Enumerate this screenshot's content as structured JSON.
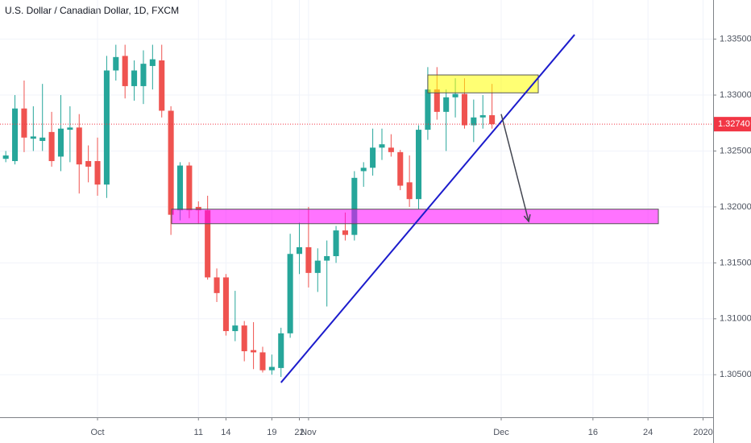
{
  "chart_data": {
    "type": "candlestick",
    "title": "U.S. Dollar / Canadian Dollar, 1D, FXCM",
    "x": [
      -10,
      -9,
      -8,
      -7,
      -6,
      -5,
      -4,
      -3,
      -2,
      -1,
      0,
      1,
      2,
      3,
      4,
      5,
      6,
      7,
      8,
      9,
      10,
      11,
      12,
      13,
      14,
      15,
      16,
      17,
      18,
      19,
      20,
      21,
      22,
      23,
      24,
      25,
      26,
      27,
      28,
      29,
      30,
      31,
      32,
      33,
      34,
      35,
      36,
      37,
      38,
      39,
      40,
      41,
      42,
      43
    ],
    "open": [
      1.3243,
      1.3241,
      1.3288,
      1.3261,
      1.3259,
      1.3267,
      1.3245,
      1.3269,
      1.3271,
      1.3241,
      1.3241,
      1.322,
      1.3322,
      1.3335,
      1.3308,
      1.3308,
      1.3326,
      1.3331,
      1.3286,
      1.3197,
      1.3237,
      1.32,
      1.3197,
      1.3137,
      1.3137,
      1.3089,
      1.3094,
      1.3072,
      1.307,
      1.3054,
      1.3056,
      1.3087,
      1.3158,
      1.3164,
      1.3141,
      1.3152,
      1.3156,
      1.3179,
      1.3175,
      1.3232,
      1.3235,
      1.3253,
      1.3253,
      1.3249,
      1.3222,
      1.3207,
      1.3269,
      1.3305,
      1.3285,
      1.3298,
      1.3301,
      1.3273,
      1.328,
      1.3282
    ],
    "high": [
      1.325,
      1.33,
      1.3313,
      1.329,
      1.331,
      1.3285,
      1.33,
      1.329,
      1.3283,
      1.3255,
      1.3262,
      1.3335,
      1.3345,
      1.3345,
      1.3331,
      1.334,
      1.3345,
      1.3345,
      1.329,
      1.324,
      1.324,
      1.3205,
      1.321,
      1.3145,
      1.314,
      1.3125,
      1.3098,
      1.3097,
      1.3075,
      1.3068,
      1.3092,
      1.3176,
      1.3186,
      1.32,
      1.3163,
      1.317,
      1.3183,
      1.3195,
      1.3232,
      1.324,
      1.327,
      1.327,
      1.3265,
      1.3251,
      1.3246,
      1.3273,
      1.3325,
      1.3325,
      1.3305,
      1.3315,
      1.3315,
      1.3296,
      1.33,
      1.331
    ],
    "low": [
      1.324,
      1.3238,
      1.3249,
      1.325,
      1.325,
      1.3236,
      1.3232,
      1.324,
      1.3212,
      1.3222,
      1.321,
      1.3208,
      1.3313,
      1.3297,
      1.3295,
      1.3292,
      1.3305,
      1.328,
      1.3175,
      1.3188,
      1.319,
      1.3185,
      1.3135,
      1.3115,
      1.3085,
      1.308,
      1.3062,
      1.3055,
      1.3052,
      1.305,
      1.3048,
      1.3083,
      1.314,
      1.3128,
      1.3124,
      1.3111,
      1.315,
      1.317,
      1.317,
      1.3218,
      1.3228,
      1.3242,
      1.3245,
      1.3215,
      1.32,
      1.3198,
      1.326,
      1.3278,
      1.325,
      1.328,
      1.327,
      1.3258,
      1.327,
      1.327
    ],
    "close": [
      1.3246,
      1.3288,
      1.3262,
      1.3263,
      1.3262,
      1.3241,
      1.327,
      1.3271,
      1.3238,
      1.3236,
      1.322,
      1.3322,
      1.3334,
      1.3308,
      1.3322,
      1.3328,
      1.3332,
      1.3286,
      1.3193,
      1.3237,
      1.3197,
      1.3197,
      1.3137,
      1.3123,
      1.3089,
      1.3094,
      1.3071,
      1.307,
      1.3054,
      1.3057,
      1.3087,
      1.3158,
      1.3164,
      1.3141,
      1.3152,
      1.3156,
      1.3179,
      1.3175,
      1.3226,
      1.3235,
      1.3253,
      1.3256,
      1.3249,
      1.3219,
      1.3207,
      1.3269,
      1.3305,
      1.3285,
      1.3298,
      1.3301,
      1.3273,
      1.328,
      1.3282,
      1.3274
    ],
    "up_color": "#26a69a",
    "down_color": "#ef5350",
    "xlim": [
      -10.63,
      67.1
    ],
    "xticks": [
      {
        "value": 0,
        "label": "Oct"
      },
      14,
      22,
      {
        "value": 23,
        "label": "Nov"
      },
      11,
      19,
      {
        "value": 44,
        "label": "Dec"
      },
      {
        "value": 54,
        "label": "16"
      },
      {
        "value": 60,
        "label": "24"
      },
      {
        "value": 66,
        "label": "2020"
      }
    ],
    "ylim": [
      1.3012,
      1.3385
    ],
    "yticks": [
      {
        "value": 1.305,
        "label": "1.30500"
      },
      {
        "value": 1.31,
        "label": "1.31000"
      },
      {
        "value": 1.315,
        "label": "1.31500"
      },
      {
        "value": 1.32,
        "label": "1.32000"
      },
      {
        "value": 1.325,
        "label": "1.32500"
      },
      {
        "value": 1.33,
        "label": "1.33000"
      },
      {
        "value": 1.335,
        "label": "1.33500"
      }
    ],
    "grid": true,
    "last_price": {
      "value": 1.3274,
      "label": "1.32740"
    },
    "last_price_color": "#f23645",
    "zones": [
      {
        "x": [
          36.0,
          48.04
        ],
        "y": [
          1.3302,
          1.3318
        ],
        "color": "#ffff00"
      },
      {
        "x": [
          8.08,
          61.13
        ],
        "y": [
          1.3185,
          1.3198
        ],
        "color": "#ff00ff"
      }
    ],
    "trendline": {
      "x": [
        20,
        52
      ],
      "y": [
        1.3043,
        1.3354
      ],
      "color": "#1c1ccc"
    },
    "arrow": {
      "x": [
        44,
        47
      ],
      "y": [
        1.3283,
        1.3187
      ],
      "color": "#434651"
    }
  }
}
